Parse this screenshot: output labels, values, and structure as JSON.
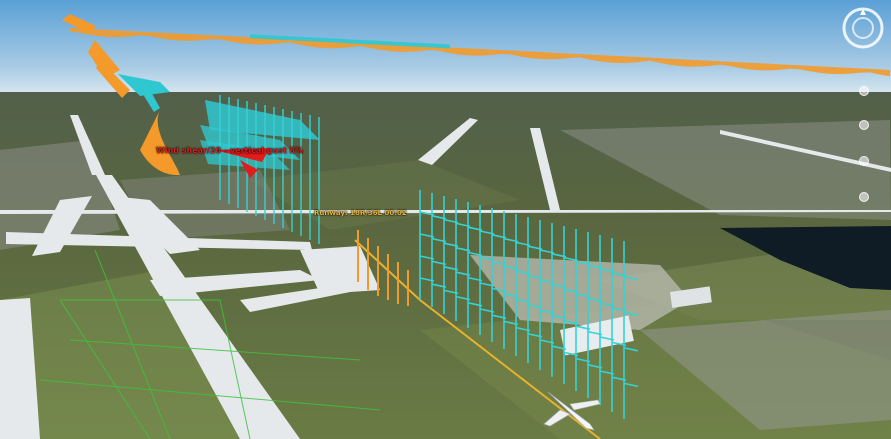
{
  "app": {
    "title": ""
  },
  "scene": {
    "labels": {
      "red_annotation": "Wind shear/20 - vertical gust 8%",
      "yellow_annotation": "Runway: 18R/36L 00:02"
    },
    "colors": {
      "sky_top": "#5fa5d8",
      "sky_horizon": "#d7e7f0",
      "ground_far": "#4d5a44",
      "ground_near": "#5b6e3f",
      "runway": "#e6e9eb",
      "wind_orange": "#f39a2a",
      "wind_cyan": "#33d3d6",
      "annotation_red": "#e21b1b",
      "glide_path": "#e7b22e",
      "flight_track_green": "#3ec23e",
      "water": "#0f1c25"
    }
  },
  "controls": {
    "compass_icon": "compass-icon",
    "look_icon": "look-joystick-icon",
    "zoom_icon": "zoom-slider-icon",
    "pegman_icon": "street-view-icon"
  }
}
